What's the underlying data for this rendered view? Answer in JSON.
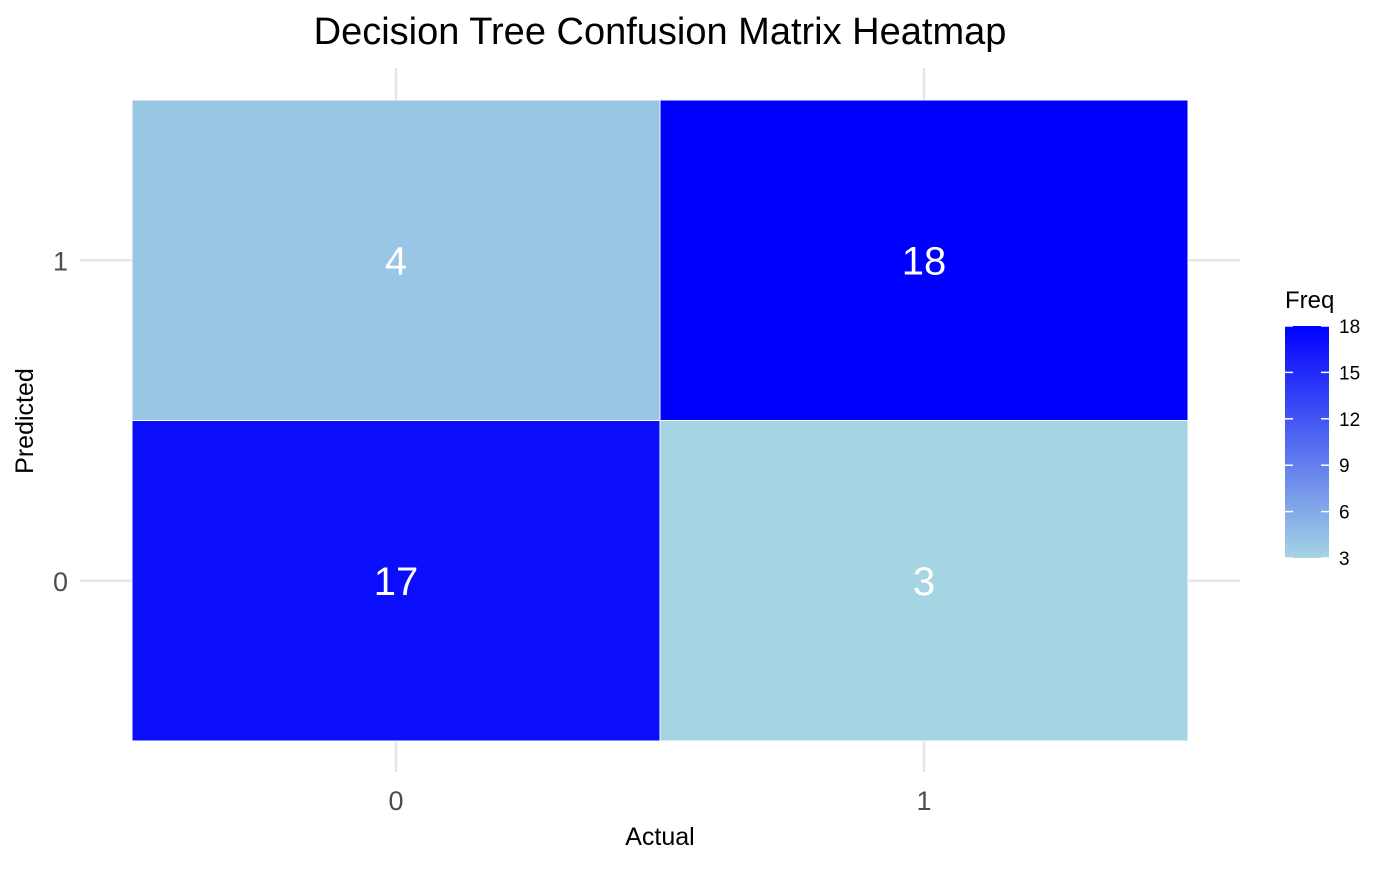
{
  "chart_data": {
    "type": "heatmap",
    "title": "Decision Tree Confusion Matrix Heatmap",
    "xlabel": "Actual",
    "ylabel": "Predicted",
    "x_categories": [
      "0",
      "1"
    ],
    "y_categories": [
      "0",
      "1"
    ],
    "cells": [
      {
        "actual": "0",
        "predicted": "0",
        "freq": 17
      },
      {
        "actual": "1",
        "predicted": "0",
        "freq": 3
      },
      {
        "actual": "0",
        "predicted": "1",
        "freq": 4
      },
      {
        "actual": "1",
        "predicted": "1",
        "freq": 18
      }
    ],
    "legend": {
      "title": "Freq",
      "ticks": [
        3,
        6,
        9,
        12,
        15,
        18
      ],
      "range": [
        3,
        18
      ],
      "low_color": "#a5d4e3",
      "high_color": "#0000ff",
      "placement": "right"
    },
    "grid": true,
    "cell_label_color": "#ffffff"
  }
}
